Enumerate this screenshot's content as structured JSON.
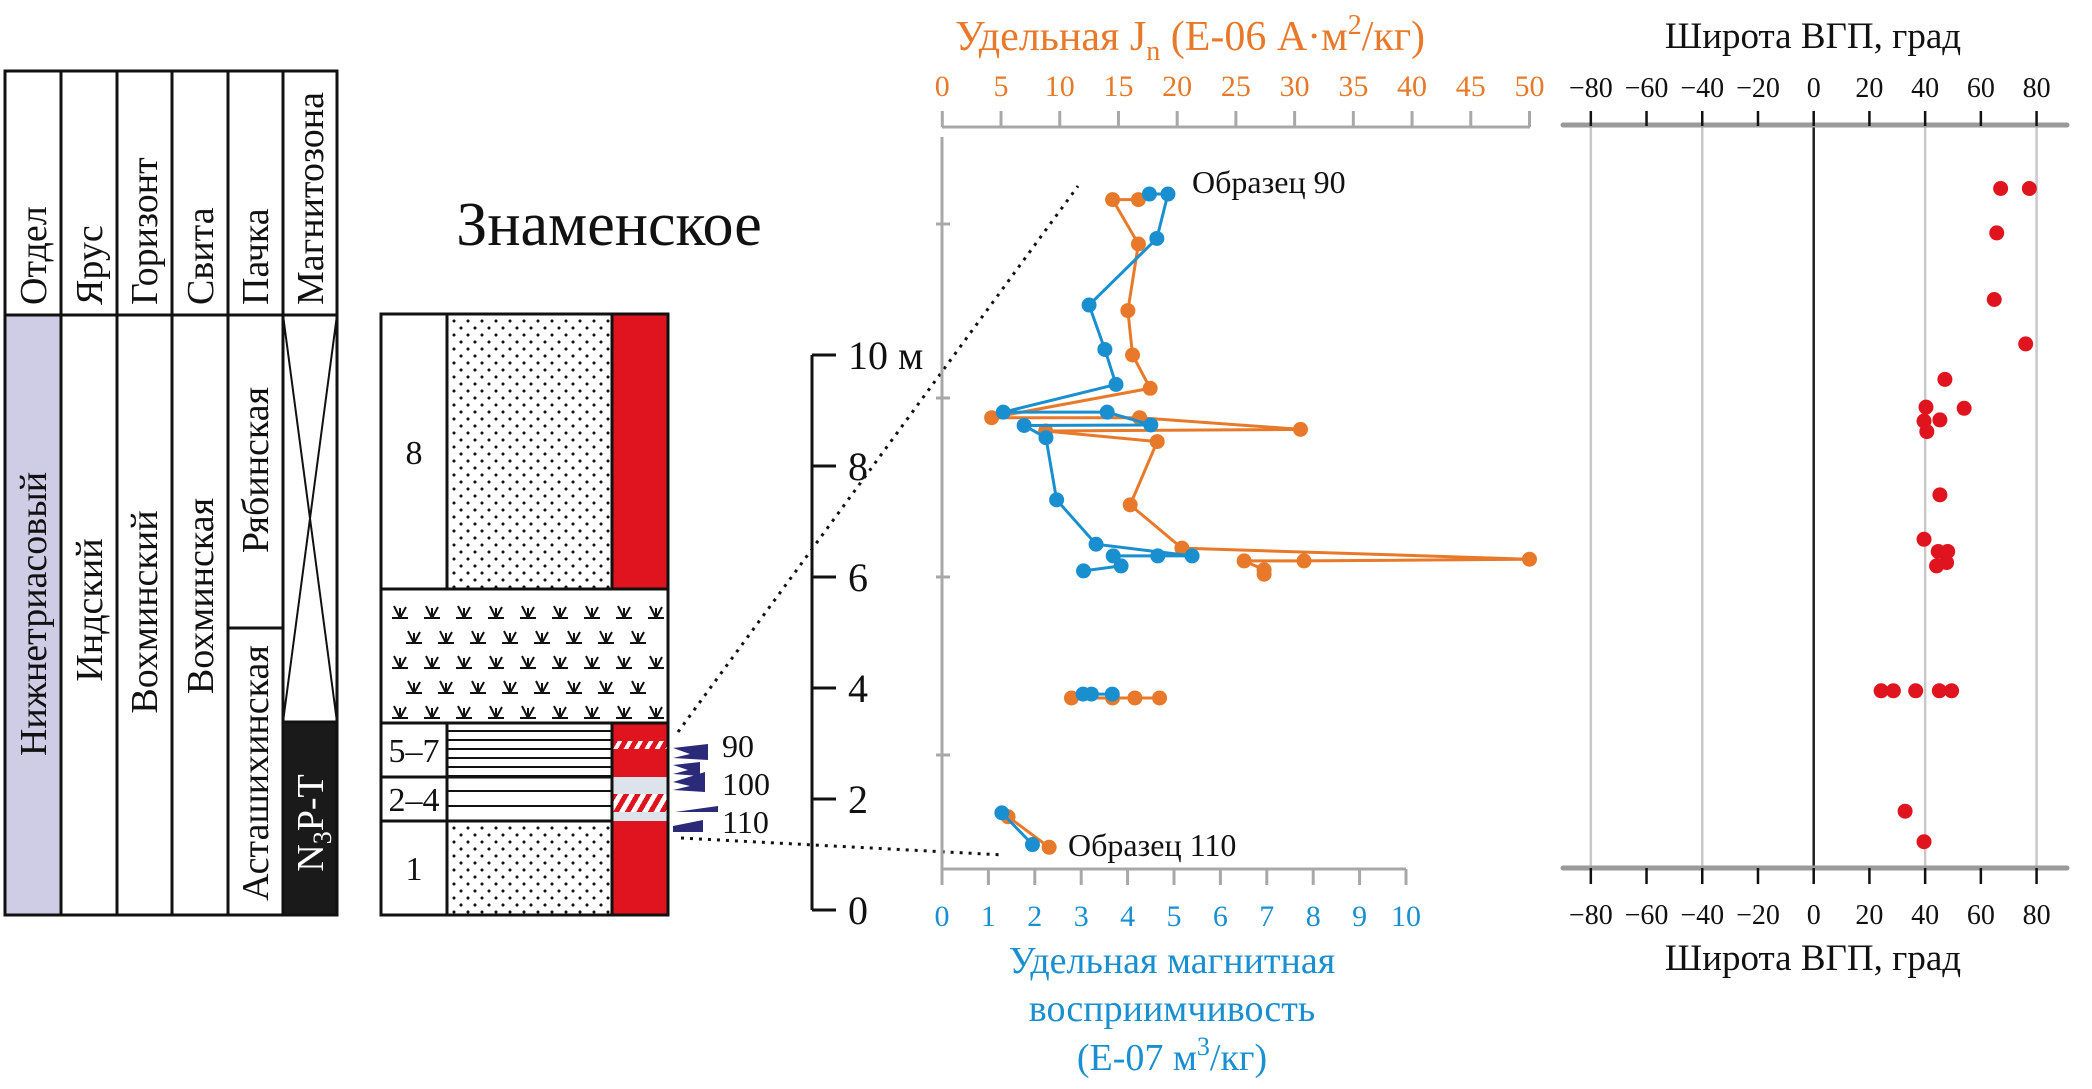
{
  "figure_title": "Знаменское",
  "strat_table": {
    "headers": [
      "Отдел",
      "Ярус",
      "Горизонт",
      "Свита",
      "Пачка",
      "Магнитозона"
    ],
    "series_label": "Нижнетриасовый",
    "stage": "Индский",
    "horizon": "Вохминский",
    "formation": "Вохминская",
    "members": [
      "Рябинская",
      "Асташихинская"
    ],
    "magnetozone": {
      "main": "N",
      "sub": "3",
      "rest": "P-T"
    },
    "colors": {
      "series_bg": "#cfcde6",
      "magnetozone_normal": "#1a1a1a"
    }
  },
  "column": {
    "layers": [
      "8",
      "5–7",
      "2–4",
      "1"
    ],
    "sample_labels": [
      "90",
      "100",
      "110"
    ],
    "colors": {
      "polarity": "#e0141e",
      "uncertain": "#dde3ea",
      "samples": "#2b2a78"
    }
  },
  "depth_axis": {
    "ticks": [
      "10 м",
      "8",
      "6",
      "4",
      "2",
      "0"
    ]
  },
  "annotations": {
    "sample_top": "Образец 90",
    "sample_bottom": "Образец 110"
  },
  "chart_data": [
    {
      "type": "line",
      "x_top": {
        "label_parts": [
          "Удельная J",
          "n",
          " (Е-06 А·м",
          "2",
          "/кг)"
        ],
        "ticks": [
          "0",
          "5",
          "10",
          "15",
          "20",
          "25",
          "30",
          "35",
          "40",
          "45",
          "50"
        ],
        "range": [
          0,
          50
        ],
        "color": "#e8792a"
      },
      "x_bottom": {
        "label_lines": [
          "Удельная магнитная",
          "восприимчивость"
        ],
        "label_unit_parts": [
          "(Е-07 м",
          "3",
          "/кг)"
        ],
        "ticks": [
          "0",
          "1",
          "2",
          "3",
          "4",
          "5",
          "6",
          "7",
          "8",
          "9",
          "10"
        ],
        "range": [
          0,
          10
        ],
        "color": "#1a8fd0"
      },
      "y_range_m": [
        0,
        13.5
      ],
      "series": [
        {
          "axis": "top",
          "color": "#e8792a",
          "segments": [
            [
              [
                16.7,
                12.8
              ],
              [
                14.5,
                12.8
              ],
              [
                16.7,
                12.0
              ],
              [
                15.8,
                10.8
              ],
              [
                16.2,
                10.0
              ],
              [
                17.7,
                9.4
              ],
              [
                4.2,
                8.87
              ],
              [
                16.8,
                8.87
              ],
              [
                30.5,
                8.66
              ],
              [
                8.8,
                8.63
              ],
              [
                18.3,
                8.44
              ],
              [
                16.0,
                7.3
              ],
              [
                20.4,
                6.52
              ],
              [
                50.0,
                6.32
              ],
              [
                30.8,
                6.29
              ],
              [
                25.7,
                6.29
              ],
              [
                27.4,
                6.13
              ],
              [
                27.4,
                6.05
              ]
            ],
            [
              [
                11.0,
                3.82
              ],
              [
                14.5,
                3.82
              ],
              [
                16.4,
                3.82
              ],
              [
                18.5,
                3.82
              ]
            ],
            [
              [
                5.6,
                1.68
              ],
              [
                9.1,
                1.13
              ]
            ]
          ]
        },
        {
          "axis": "bottom",
          "color": "#1a8fd0",
          "segments": [
            [
              [
                4.47,
                12.9
              ],
              [
                4.87,
                12.9
              ],
              [
                4.63,
                12.1
              ],
              [
                3.17,
                10.9
              ],
              [
                3.51,
                10.1
              ],
              [
                3.75,
                9.47
              ],
              [
                1.32,
                8.97
              ],
              [
                3.56,
                8.97
              ],
              [
                4.5,
                8.74
              ],
              [
                1.77,
                8.73
              ],
              [
                2.24,
                8.51
              ],
              [
                2.47,
                7.39
              ],
              [
                3.32,
                6.59
              ],
              [
                5.39,
                6.38
              ],
              [
                4.65,
                6.38
              ],
              [
                3.69,
                6.38
              ],
              [
                3.86,
                6.2
              ],
              [
                3.05,
                6.11
              ]
            ],
            [
              [
                3.04,
                3.89
              ],
              [
                3.22,
                3.89
              ],
              [
                3.67,
                3.89
              ]
            ],
            [
              [
                1.29,
                1.75
              ],
              [
                1.95,
                1.18
              ]
            ]
          ]
        }
      ]
    },
    {
      "type": "scatter",
      "xlabel": "Широта ВГП, град",
      "ticks": [
        "−80",
        "−60",
        "−40",
        "−20",
        "0",
        "20",
        "40",
        "60",
        "80"
      ],
      "tick_values": [
        -80,
        -60,
        -40,
        -20,
        0,
        20,
        40,
        60,
        80
      ],
      "gridlines": [
        -80,
        -40,
        0,
        40,
        80
      ],
      "x_range": [
        -80,
        80
      ],
      "color": "#e0141e",
      "points": [
        [
          67.1,
          13.0
        ],
        [
          77.4,
          13.0
        ],
        [
          65.7,
          12.2
        ],
        [
          64.8,
          11.0
        ],
        [
          76.1,
          10.2
        ],
        [
          47.1,
          9.56
        ],
        [
          40.3,
          9.06
        ],
        [
          54.0,
          9.04
        ],
        [
          45.3,
          8.83
        ],
        [
          39.6,
          8.81
        ],
        [
          40.6,
          8.62
        ],
        [
          45.3,
          7.48
        ],
        [
          39.6,
          6.68
        ],
        [
          44.7,
          6.46
        ],
        [
          48.1,
          6.46
        ],
        [
          44.1,
          6.2
        ],
        [
          47.7,
          6.26
        ],
        [
          24.2,
          3.95
        ],
        [
          28.6,
          3.95
        ],
        [
          36.6,
          3.95
        ],
        [
          45.1,
          3.95
        ],
        [
          49.5,
          3.95
        ],
        [
          32.8,
          1.78
        ],
        [
          39.6,
          1.23
        ]
      ]
    }
  ]
}
